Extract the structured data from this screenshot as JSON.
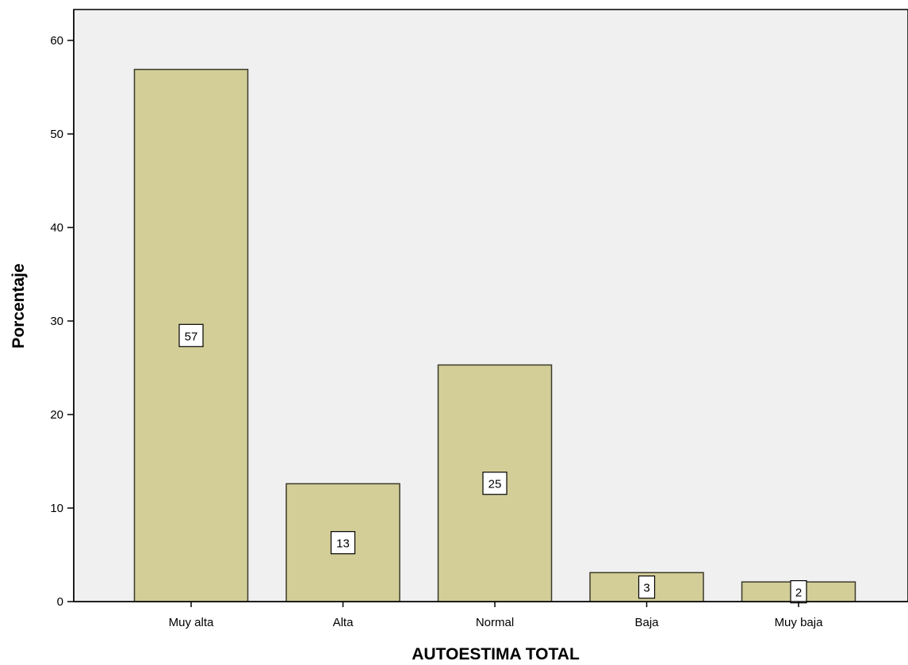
{
  "chart_data": {
    "type": "bar",
    "categories": [
      "Muy alta",
      "Alta",
      "Normal",
      "Baja",
      "Muy baja"
    ],
    "values": [
      56.9,
      12.6,
      25.3,
      3.1,
      2.1
    ],
    "data_labels": [
      "57",
      "13",
      "25",
      "3",
      "2"
    ],
    "xlabel": "AUTOESTIMA TOTAL",
    "ylabel": "Porcentaje",
    "ylim": [
      0,
      60
    ],
    "yticks": [
      0,
      10,
      20,
      30,
      40,
      50,
      60
    ],
    "ytick_labels": [
      "0",
      "10",
      "20",
      "30",
      "40",
      "50",
      "60"
    ],
    "grid": false,
    "colors": {
      "bar_fill": "#D3CE98",
      "bar_stroke": "#3A3A2A",
      "plot_background": "#F0F0F0"
    }
  }
}
